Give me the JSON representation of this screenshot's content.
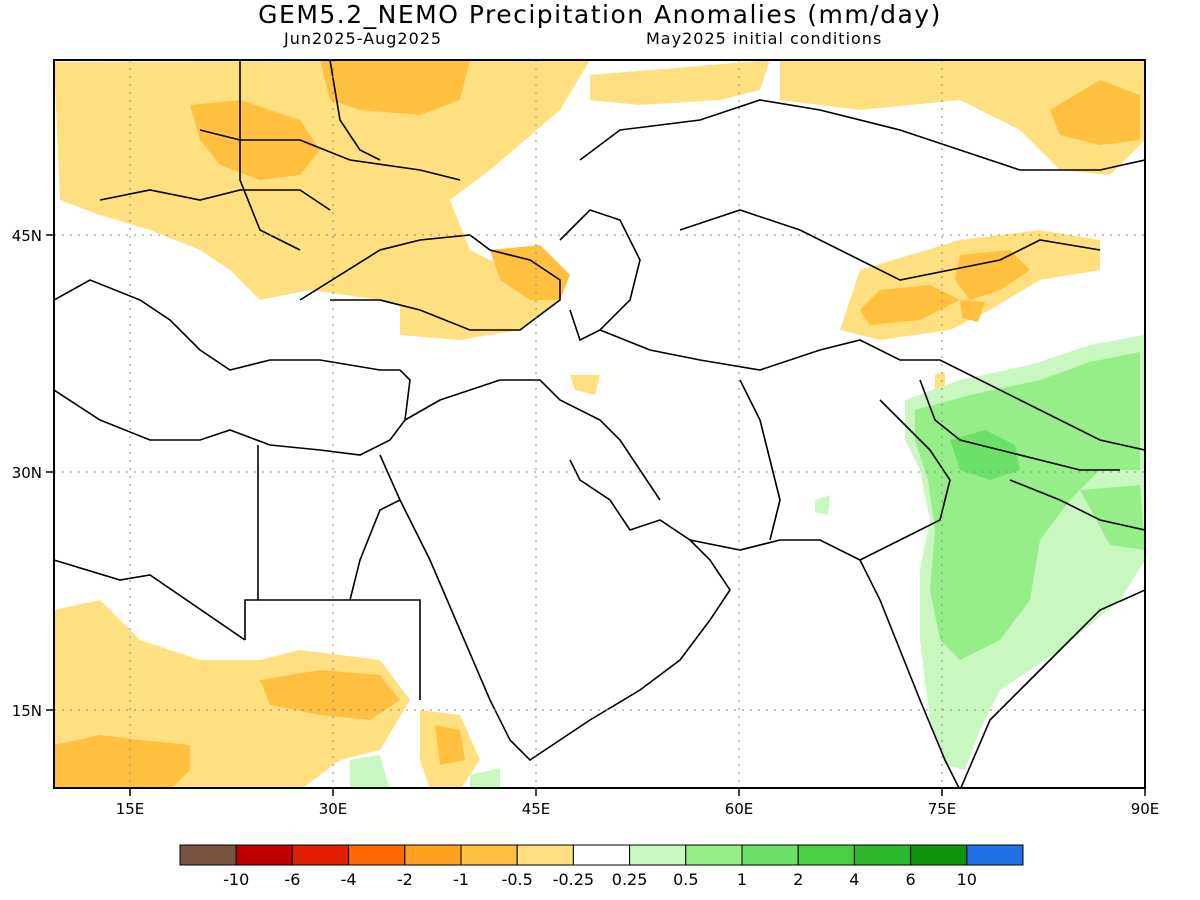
{
  "title": "GEM5.2_NEMO Precipitation Anomalies (mm/day)",
  "subtitle_left": "Jun2025-Aug2025",
  "subtitle_right": "May2025 initial conditions",
  "map": {
    "lon_range": [
      10,
      90
    ],
    "lat_range": [
      10,
      56
    ],
    "lon_ticks": [
      {
        "value": 15,
        "label": "15E"
      },
      {
        "value": 30,
        "label": "30E"
      },
      {
        "value": 45,
        "label": "45E"
      },
      {
        "value": 60,
        "label": "60E"
      },
      {
        "value": 75,
        "label": "75E"
      },
      {
        "value": 90,
        "label": "90E"
      }
    ],
    "lat_ticks": [
      {
        "value": 45,
        "label": "45N"
      },
      {
        "value": 30,
        "label": "30N"
      },
      {
        "value": 15,
        "label": "15N"
      }
    ],
    "gridlines": "dotted"
  },
  "colorbar": {
    "colors": [
      "#7a5340",
      "#c00000",
      "#e02000",
      "#ff6a00",
      "#ffa020",
      "#ffc040",
      "#ffe080",
      "#ffffff",
      "#c8f8c0",
      "#96ee88",
      "#6de06a",
      "#48d040",
      "#2cb82c",
      "#10940e",
      "#2070e8"
    ],
    "labels": [
      "-10",
      "-6",
      "-4",
      "-2",
      "-1",
      "-0.5",
      "-0.25",
      "0.25",
      "0.5",
      "1",
      "2",
      "4",
      "6",
      "10"
    ]
  }
}
